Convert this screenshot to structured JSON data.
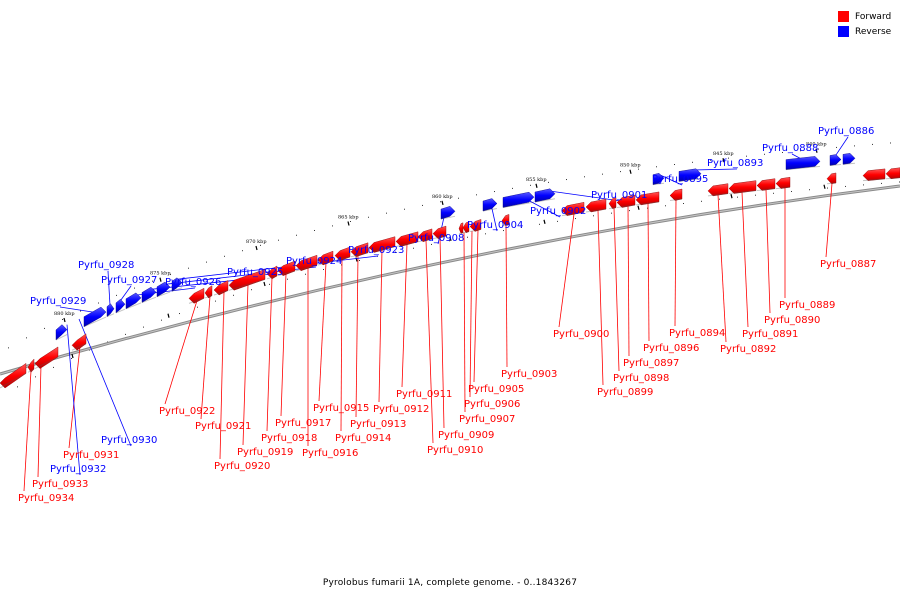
{
  "title": "Pyrolobus fumarii 1A, complete genome. - 0..1843267",
  "legend": [
    {
      "label": "Forward",
      "color": "#ff0000"
    },
    {
      "label": "Reverse",
      "color": "#0000ff"
    }
  ],
  "colors": {
    "forward": "#ff0000",
    "reverse": "#0000ff",
    "backbone": "#666666",
    "leader": "#000000"
  },
  "ticks": [
    "880 kbp",
    "875 kbp",
    "870 kbp",
    "865 kbp",
    "860 kbp",
    "855 kbp",
    "850 kbp",
    "845 kbp",
    "840 kbp"
  ],
  "genes": [
    {
      "label": "Pyrfu_0886",
      "strand": "reverse"
    },
    {
      "label": "Pyrfu_0887",
      "strand": "forward"
    },
    {
      "label": "Pyrfu_0888",
      "strand": "reverse"
    },
    {
      "label": "Pyrfu_0889",
      "strand": "forward"
    },
    {
      "label": "Pyrfu_0890",
      "strand": "forward"
    },
    {
      "label": "Pyrfu_0891",
      "strand": "forward"
    },
    {
      "label": "Pyrfu_0892",
      "strand": "forward"
    },
    {
      "label": "Pyrfu_0893",
      "strand": "reverse"
    },
    {
      "label": "Pyrfu_0894",
      "strand": "forward"
    },
    {
      "label": "Pyrfu_0895",
      "strand": "reverse"
    },
    {
      "label": "Pyrfu_0896",
      "strand": "forward"
    },
    {
      "label": "Pyrfu_0897",
      "strand": "forward"
    },
    {
      "label": "Pyrfu_0898",
      "strand": "forward"
    },
    {
      "label": "Pyrfu_0899",
      "strand": "forward"
    },
    {
      "label": "Pyrfu_0900",
      "strand": "forward"
    },
    {
      "label": "Pyrfu_0901",
      "strand": "reverse"
    },
    {
      "label": "Pyrfu_0902",
      "strand": "reverse"
    },
    {
      "label": "Pyrfu_0903",
      "strand": "forward"
    },
    {
      "label": "Pyrfu_0904",
      "strand": "reverse"
    },
    {
      "label": "Pyrfu_0905",
      "strand": "forward"
    },
    {
      "label": "Pyrfu_0906",
      "strand": "forward"
    },
    {
      "label": "Pyrfu_0907",
      "strand": "forward"
    },
    {
      "label": "Pyrfu_0908",
      "strand": "reverse"
    },
    {
      "label": "Pyrfu_0909",
      "strand": "forward"
    },
    {
      "label": "Pyrfu_0910",
      "strand": "forward"
    },
    {
      "label": "Pyrfu_0911",
      "strand": "forward"
    },
    {
      "label": "Pyrfu_0912",
      "strand": "forward"
    },
    {
      "label": "Pyrfu_0913",
      "strand": "forward"
    },
    {
      "label": "Pyrfu_0914",
      "strand": "forward"
    },
    {
      "label": "Pyrfu_0915",
      "strand": "forward"
    },
    {
      "label": "Pyrfu_0916",
      "strand": "forward"
    },
    {
      "label": "Pyrfu_0917",
      "strand": "forward"
    },
    {
      "label": "Pyrfu_0918",
      "strand": "forward"
    },
    {
      "label": "Pyrfu_0919",
      "strand": "forward"
    },
    {
      "label": "Pyrfu_0920",
      "strand": "forward"
    },
    {
      "label": "Pyrfu_0921",
      "strand": "forward"
    },
    {
      "label": "Pyrfu_0922",
      "strand": "forward"
    },
    {
      "label": "Pyrfu_0923",
      "strand": "reverse"
    },
    {
      "label": "Pyrfu_0924",
      "strand": "reverse"
    },
    {
      "label": "Pyrfu_0925",
      "strand": "reverse"
    },
    {
      "label": "Pyrfu_0926",
      "strand": "reverse"
    },
    {
      "label": "Pyrfu_0927",
      "strand": "reverse"
    },
    {
      "label": "Pyrfu_0928",
      "strand": "reverse"
    },
    {
      "label": "Pyrfu_0929",
      "strand": "reverse"
    },
    {
      "label": "Pyrfu_0930",
      "strand": "reverse"
    },
    {
      "label": "Pyrfu_0931",
      "strand": "forward"
    },
    {
      "label": "Pyrfu_0932",
      "strand": "reverse"
    },
    {
      "label": "Pyrfu_0933",
      "strand": "forward"
    },
    {
      "label": "Pyrfu_0934",
      "strand": "forward"
    }
  ]
}
